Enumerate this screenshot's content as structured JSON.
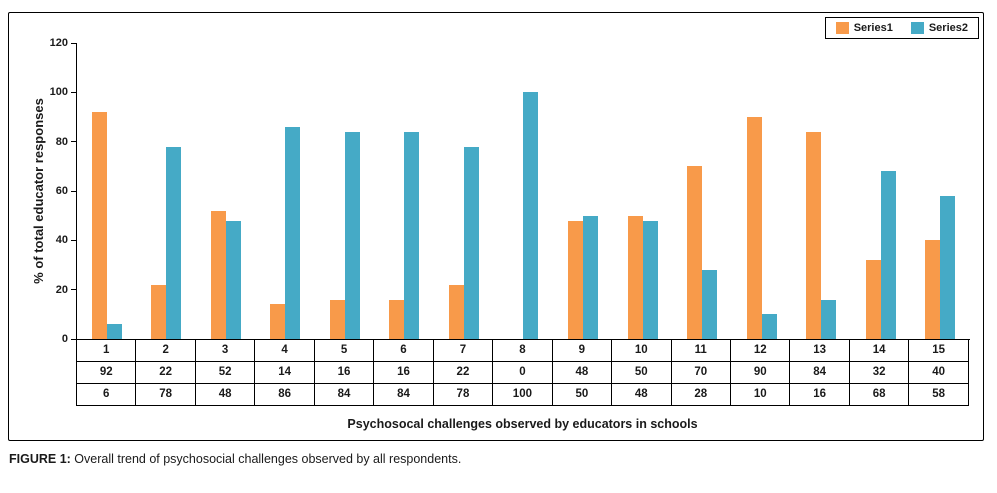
{
  "figure": {
    "caption_prefix": "FIGURE 1:",
    "caption_text": " Overall trend of psychosocial challenges observed by all respondents."
  },
  "chart_data": {
    "type": "bar",
    "title": "",
    "xlabel": "Psychosocal challenges observed by educators in schools",
    "ylabel": "% of total educator responses",
    "ylim": [
      0,
      120
    ],
    "yticks": [
      0,
      20,
      40,
      60,
      80,
      100,
      120
    ],
    "grid": false,
    "legend_position": "top-right",
    "data_table_shown": true,
    "categories": [
      "1",
      "2",
      "3",
      "4",
      "5",
      "6",
      "7",
      "8",
      "9",
      "10",
      "11",
      "12",
      "13",
      "14",
      "15"
    ],
    "series": [
      {
        "name": "Series1",
        "color": "#F89A4A",
        "values": [
          92,
          22,
          52,
          14,
          16,
          16,
          22,
          0,
          48,
          50,
          70,
          90,
          84,
          32,
          40
        ]
      },
      {
        "name": "Series2",
        "color": "#45AAC6",
        "values": [
          6,
          78,
          48,
          86,
          84,
          84,
          78,
          100,
          50,
          48,
          28,
          10,
          16,
          68,
          58
        ]
      }
    ]
  }
}
